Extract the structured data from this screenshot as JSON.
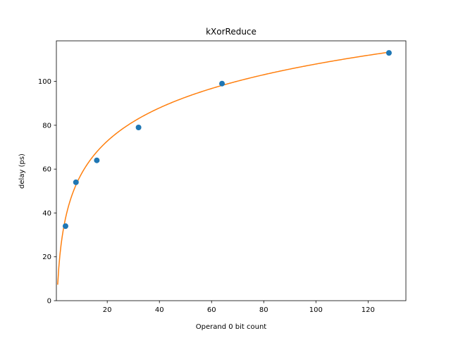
{
  "chart_data": {
    "type": "scatter",
    "title": "kXorReduce",
    "xlabel": "Operand 0 bit count",
    "ylabel": "delay (ps)",
    "xlim": [
      0.5,
      134.5
    ],
    "ylim": [
      0,
      118.5
    ],
    "xticks": [
      20,
      40,
      60,
      80,
      100,
      120
    ],
    "yticks": [
      0,
      20,
      40,
      60,
      80,
      100
    ],
    "grid": false,
    "series": [
      {
        "kind": "points",
        "color": "#1f77b4",
        "x": [
          4,
          8,
          16,
          32,
          64,
          128
        ],
        "y": [
          34,
          54,
          64,
          79,
          99,
          113
        ]
      },
      {
        "kind": "fit-curve",
        "color": "#ff7f0e",
        "model": "a + b*ln(x)",
        "a": 7.3,
        "b": 21.85,
        "x_range": [
          1,
          128
        ]
      }
    ]
  }
}
